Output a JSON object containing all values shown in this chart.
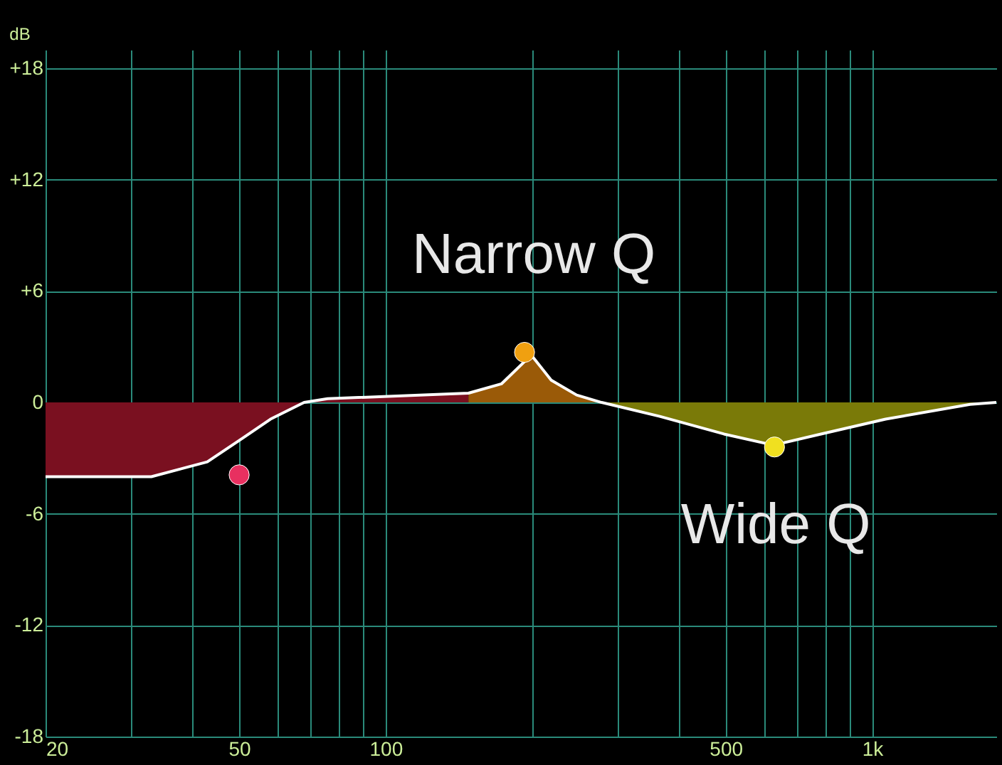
{
  "chart_data": {
    "type": "line",
    "ylabel": "dB",
    "log": "x",
    "grid": true,
    "legend": false,
    "xlim": [
      20,
      1800
    ],
    "ylim": [
      -18,
      19
    ],
    "xticks": [
      20,
      {
        "value": 30,
        "label": null
      },
      {
        "value": 40,
        "label": null
      },
      50,
      {
        "value": 60,
        "label": null
      },
      {
        "value": 70,
        "label": null
      },
      {
        "value": 80,
        "label": null
      },
      {
        "value": 90,
        "label": null
      },
      100,
      {
        "value": 200,
        "label": null
      },
      {
        "value": 300,
        "label": null
      },
      {
        "value": 400,
        "label": null
      },
      500,
      {
        "value": 600,
        "label": null
      },
      {
        "value": 700,
        "label": null
      },
      {
        "value": 800,
        "label": null
      },
      {
        "value": 900,
        "label": null
      },
      {
        "value": 1000,
        "label": "1k"
      }
    ],
    "yticks": [
      {
        "value": 18,
        "label": "+18"
      },
      {
        "value": 12,
        "label": "+12"
      },
      {
        "value": 6,
        "label": "+6"
      },
      0,
      -6,
      -12,
      -18
    ],
    "series": [
      {
        "type": "area",
        "color": "#7a1020",
        "x": [
          20,
          33,
          43,
          51,
          58,
          68,
          76,
          148
        ],
        "values": [
          -4.0,
          -4.0,
          -3.2,
          -1.9,
          -0.9,
          0,
          0.2,
          0.5
        ]
      },
      {
        "type": "area",
        "color": "#9a5a08",
        "x": [
          148,
          173,
          193,
          200,
          219,
          247,
          278
        ],
        "values": [
          0.5,
          1.0,
          2.2,
          2.5,
          1.2,
          0.4,
          0
        ]
      },
      {
        "type": "area",
        "color": "#7a7a08",
        "x": [
          278,
          366,
          496,
          627,
          785,
          1066,
          1590,
          1800
        ],
        "values": [
          0,
          -0.75,
          -1.7,
          -2.3,
          -1.7,
          -0.9,
          -0.1,
          0
        ]
      },
      {
        "color": "#ffffff",
        "line_style": "solid",
        "x": [
          20,
          33,
          43,
          51,
          58,
          68,
          76,
          148,
          173,
          193,
          200,
          219,
          247,
          278,
          366,
          496,
          627,
          785,
          1066,
          1590,
          1800
        ],
        "values": [
          -4.0,
          -4.0,
          -3.2,
          -1.9,
          -0.9,
          0,
          0.2,
          0.5,
          1.0,
          2.2,
          2.5,
          1.2,
          0.4,
          0,
          -0.75,
          -1.7,
          -2.3,
          -1.7,
          -0.9,
          -0.1,
          0
        ]
      },
      {
        "type": "scatter",
        "marker": "circle",
        "x": [
          50,
          193,
          630
        ],
        "values": [
          -3.9,
          2.7,
          -2.4
        ],
        "colors": [
          "#e83060",
          "#f0a010",
          "#f0e020"
        ]
      }
    ],
    "annotations": [
      "Narrow Q",
      "Wide Q"
    ]
  }
}
